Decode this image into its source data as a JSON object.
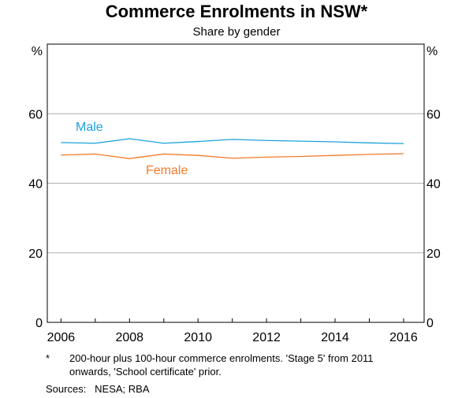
{
  "chart_data": {
    "type": "line",
    "title": "Commerce Enrolments in NSW*",
    "subtitle": "Share by gender",
    "ylabel_left": "%",
    "ylabel_right": "%",
    "ylim": [
      0,
      80
    ],
    "yticks": [
      0,
      20,
      40,
      60
    ],
    "xlim": [
      2005.6,
      2016.6
    ],
    "xticks": [
      2006,
      2008,
      2010,
      2012,
      2014,
      2016
    ],
    "grid": true,
    "x": [
      2006,
      2007,
      2008,
      2009,
      2010,
      2011,
      2012,
      2013,
      2014,
      2015,
      2016
    ],
    "series": [
      {
        "name": "Male",
        "color": "#1aa3dc",
        "values": [
          51.7,
          51.5,
          52.8,
          51.5,
          52.0,
          52.6,
          52.3,
          52.1,
          51.9,
          51.6,
          51.4
        ]
      },
      {
        "name": "Female",
        "color": "#f47b2a",
        "values": [
          48.1,
          48.4,
          47.1,
          48.4,
          48.0,
          47.2,
          47.5,
          47.7,
          48.0,
          48.3,
          48.5
        ]
      }
    ]
  },
  "footnote": {
    "marker": "*",
    "text_line1": "200-hour plus 100-hour commerce enrolments. 'Stage 5' from 2011",
    "text_line2": "onwards, 'School certificate' prior.",
    "sources": "Sources:   NESA; RBA"
  }
}
